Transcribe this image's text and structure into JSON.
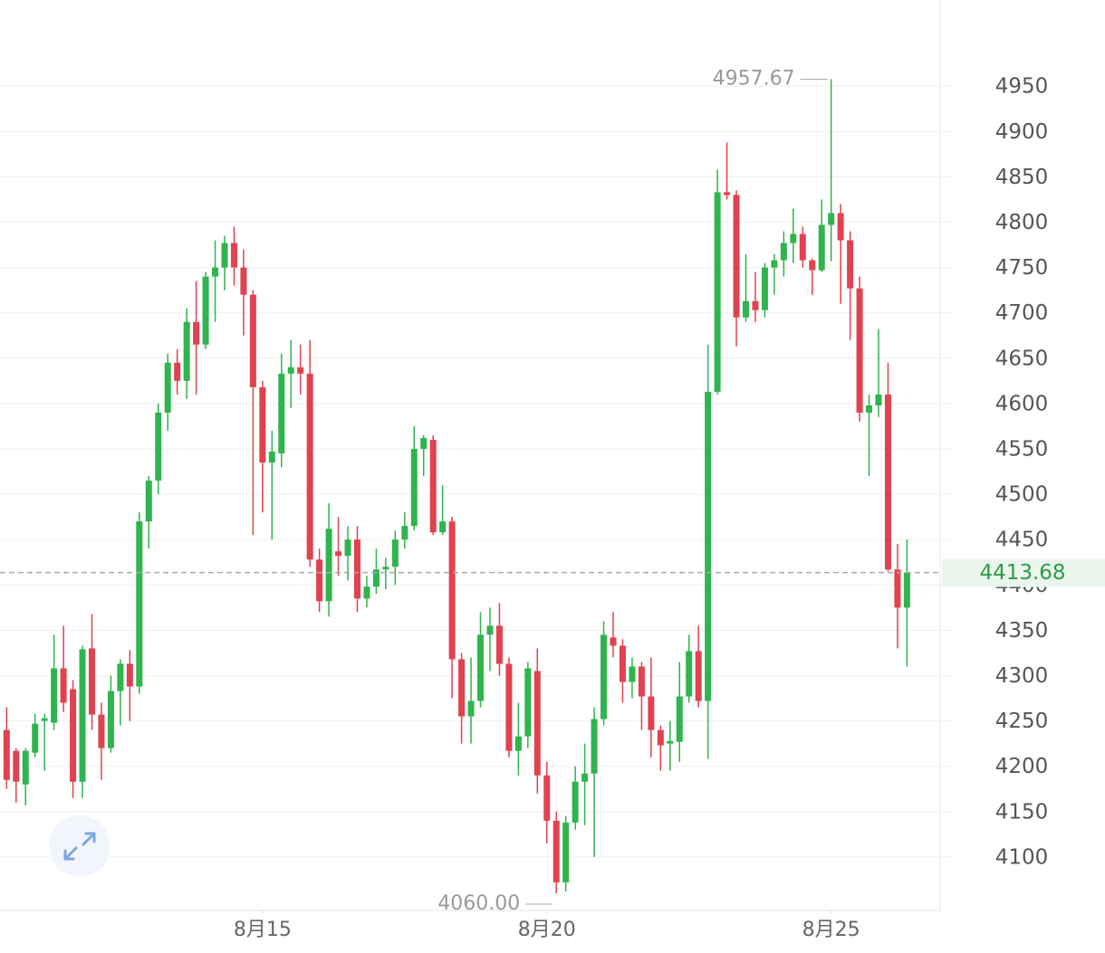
{
  "chart_data": {
    "type": "candlestick",
    "up_color": "#2fb44e",
    "down_color": "#e0424f",
    "ylim": [
      4041,
      5045
    ],
    "yticks": [
      4100,
      4150,
      4200,
      4250,
      4300,
      4350,
      4400,
      4450,
      4500,
      4550,
      4600,
      4650,
      4700,
      4750,
      4800,
      4850,
      4900,
      4950
    ],
    "xlim": [
      -0.7,
      98.5
    ],
    "xticks": [
      {
        "value": 27,
        "label": "8月15"
      },
      {
        "value": 57,
        "label": "8月20"
      },
      {
        "value": 87,
        "label": "8月25"
      }
    ],
    "grid": true,
    "low_label": "4060.00",
    "open": [
      4240,
      4217,
      4180,
      4215,
      4250,
      4248,
      4308,
      4285,
      4183,
      4330,
      4257,
      4220,
      4283,
      4313,
      4288,
      4470,
      4515,
      4590,
      4645,
      4625,
      4690,
      4665,
      4740,
      4750,
      4777,
      4750,
      4720,
      4618,
      4535,
      4545,
      4633,
      4640,
      4633,
      4428,
      4382,
      4437,
      4432,
      4450,
      4385,
      4398,
      4417,
      4420,
      4450,
      4465,
      4550,
      4560,
      4458,
      4470,
      4318,
      4255,
      4272,
      4345,
      4355,
      4313,
      4217,
      4233,
      4305,
      4190,
      4140,
      4072,
      4138,
      4183,
      4192,
      4252,
      4342,
      4333,
      4293,
      4310,
      4277,
      4240,
      4225,
      4227,
      4277,
      4327,
      4272,
      4613,
      4833,
      4830,
      4695,
      4713,
      4703,
      4750,
      4758,
      4777,
      4787,
      4758,
      4747,
      4797,
      4810,
      4780,
      4727,
      4590,
      4598,
      4610,
      4417,
      4375
    ],
    "high": [
      4265,
      4220,
      4220,
      4258,
      4258,
      4345,
      4355,
      4295,
      4333,
      4368,
      4270,
      4300,
      4318,
      4328,
      4480,
      4520,
      4600,
      4655,
      4660,
      4705,
      4735,
      4745,
      4780,
      4785,
      4795,
      4770,
      4725,
      4625,
      4570,
      4655,
      4670,
      4665,
      4670,
      4440,
      4490,
      4475,
      4465,
      4465,
      4410,
      4440,
      4430,
      4460,
      4480,
      4575,
      4565,
      4565,
      4510,
      4475,
      4325,
      4320,
      4370,
      4375,
      4380,
      4320,
      4270,
      4315,
      4330,
      4205,
      4150,
      4145,
      4200,
      4225,
      4265,
      4360,
      4370,
      4340,
      4320,
      4315,
      4320,
      4245,
      4250,
      4315,
      4345,
      4355,
      4665,
      4858,
      4888,
      4835,
      4765,
      4745,
      4755,
      4765,
      4790,
      4815,
      4795,
      4760,
      4825,
      4957.67,
      4820,
      4790,
      4740,
      4610,
      4682,
      4645,
      4445,
      4450
    ],
    "low": [
      4175,
      4160,
      4157,
      4210,
      4195,
      4240,
      4260,
      4165,
      4165,
      4240,
      4185,
      4215,
      4245,
      4250,
      4280,
      4440,
      4500,
      4570,
      4610,
      4605,
      4610,
      4660,
      4690,
      4725,
      4730,
      4675,
      4455,
      4480,
      4450,
      4530,
      4595,
      4610,
      4420,
      4370,
      4365,
      4410,
      4405,
      4370,
      4375,
      4390,
      4395,
      4400,
      4440,
      4460,
      4520,
      4455,
      4455,
      4275,
      4225,
      4225,
      4265,
      4305,
      4300,
      4210,
      4190,
      4220,
      4170,
      4115,
      4060,
      4062,
      4130,
      4135,
      4100,
      4245,
      4320,
      4270,
      4275,
      4240,
      4210,
      4195,
      4195,
      4205,
      4270,
      4265,
      4208,
      4610,
      4825,
      4663,
      4690,
      4690,
      4695,
      4720,
      4740,
      4755,
      4750,
      4720,
      4745,
      4757,
      4710,
      4670,
      4580,
      4520,
      4585,
      4415,
      4330,
      4310
    ],
    "close": [
      4185,
      4183,
      4217,
      4247,
      4253,
      4308,
      4270,
      4183,
      4329,
      4257,
      4220,
      4283,
      4313,
      4288,
      4470,
      4515,
      4590,
      4645,
      4625,
      4690,
      4665,
      4740,
      4750,
      4777,
      4750,
      4720,
      4618,
      4535,
      4547,
      4633,
      4640,
      4633,
      4428,
      4382,
      4462,
      4432,
      4450,
      4385,
      4398,
      4417,
      4420,
      4450,
      4465,
      4550,
      4562,
      4458,
      4470,
      4318,
      4255,
      4272,
      4345,
      4355,
      4313,
      4217,
      4233,
      4308,
      4190,
      4140,
      4072,
      4138,
      4183,
      4192,
      4252,
      4345,
      4333,
      4293,
      4310,
      4277,
      4240,
      4223,
      4228,
      4277,
      4327,
      4272,
      4613,
      4833,
      4830,
      4695,
      4713,
      4703,
      4750,
      4758,
      4777,
      4787,
      4758,
      4747,
      4797,
      4810,
      4780,
      4727,
      4590,
      4598,
      4610,
      4417,
      4375,
      4413.68
    ]
  }
}
